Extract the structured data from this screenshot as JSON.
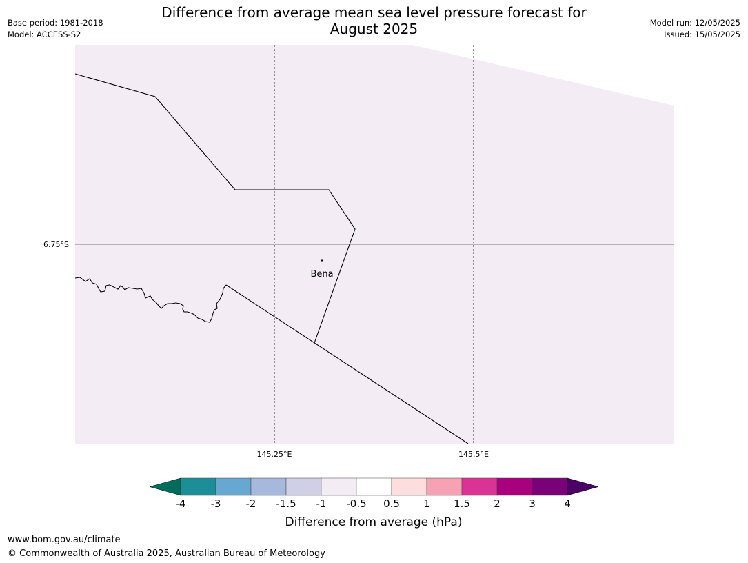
{
  "header": {
    "title_line1": "Difference from average mean sea level pressure forecast for",
    "title_line2": "August 2025",
    "base_period": "Base period: 1981-2018",
    "model": "Model: ACCESS-S2",
    "model_run": "Model run: 12/05/2025",
    "issued": "Issued: 15/05/2025"
  },
  "map": {
    "fill_color": "#f3ecf5",
    "latitude_labels": [
      "6.75°S"
    ],
    "longitude_labels": [
      "145.25°E",
      "145.5°E"
    ],
    "places": [
      {
        "name": "Bena"
      }
    ]
  },
  "colorbar": {
    "title": "Difference from average (hPa)",
    "ticks": [
      "-4",
      "-3",
      "-2",
      "-1.5",
      "-1",
      "-0.5",
      "0.5",
      "1",
      "1.5",
      "2",
      "3",
      "4"
    ],
    "colors": [
      "#1b8e97",
      "#67a8d0",
      "#a6b8dc",
      "#cfcfe5",
      "#f3ecf5",
      "#ffffff",
      "#fdddde",
      "#f7a1b4",
      "#db3296",
      "#a9017d",
      "#7a0177"
    ],
    "extend_low_color": "#006d5c",
    "extend_high_color": "#4b0066"
  },
  "footer": {
    "url": "www.bom.gov.au/climate",
    "copyright": "© Commonwealth of Australia 2025, Australian Bureau of Meteorology"
  }
}
